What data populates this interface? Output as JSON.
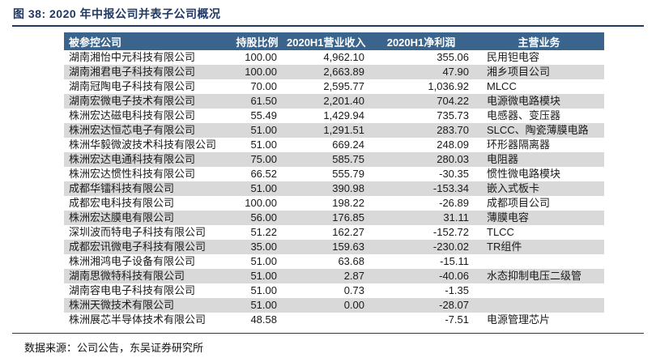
{
  "figure": {
    "title": "图 38:  2020 年中报公司并表子公司概况"
  },
  "table": {
    "columns": [
      "被参控公司",
      "持股比例",
      "2020H1营业收入",
      "2020H1净利润",
      "主营业务"
    ],
    "rows": [
      {
        "company": "湖南湘怡中元科技有限公司",
        "ratio": "100.00",
        "revenue": "4,962.10",
        "profit": "355.06",
        "business": "民用钽电容"
      },
      {
        "company": "湖南湘君电子科技有限公司",
        "ratio": "100.00",
        "revenue": "2,663.89",
        "profit": "47.90",
        "business": "湘乡项目公司"
      },
      {
        "company": "湖南冠陶电子科技有限公司",
        "ratio": "70.00",
        "revenue": "2,595.77",
        "profit": "1,036.92",
        "business": "MLCC"
      },
      {
        "company": "湖南宏微电子技术有限公司",
        "ratio": "61.50",
        "revenue": "2,201.40",
        "profit": "704.22",
        "business": "电源微电路模块"
      },
      {
        "company": "株洲宏达磁电科技有限公司",
        "ratio": "55.49",
        "revenue": "1,429.94",
        "profit": "735.73",
        "business": "电感器、变压器"
      },
      {
        "company": "株洲宏达恒芯电子有限公司",
        "ratio": "51.00",
        "revenue": "1,291.51",
        "profit": "283.70",
        "business": "SLCC、陶瓷薄膜电路"
      },
      {
        "company": "株洲华毅微波技术科技有限公司",
        "ratio": "51.00",
        "revenue": "669.24",
        "profit": "248.09",
        "business": "环形器隔离器"
      },
      {
        "company": "株洲宏达电通科技有限公司",
        "ratio": "75.00",
        "revenue": "585.75",
        "profit": "280.03",
        "business": "电阻器"
      },
      {
        "company": "株洲宏达惯性科技有限公司",
        "ratio": "66.52",
        "revenue": "555.79",
        "profit": "-30.35",
        "business": "惯性微电路模块"
      },
      {
        "company": "成都华镭科技有限公司",
        "ratio": "51.00",
        "revenue": "390.98",
        "profit": "-153.34",
        "business": "嵌入式板卡"
      },
      {
        "company": "成都宏电科技有限公司",
        "ratio": "100.00",
        "revenue": "198.22",
        "profit": "-26.89",
        "business": "成都项目公司"
      },
      {
        "company": "株洲宏达膜电有限公司",
        "ratio": "56.00",
        "revenue": "176.85",
        "profit": "31.11",
        "business": "薄膜电容"
      },
      {
        "company": "深圳波而特电子科技有限公司",
        "ratio": "51.22",
        "revenue": "162.27",
        "profit": "-152.72",
        "business": "TLCC"
      },
      {
        "company": "成都宏讯微电子科技有限公司",
        "ratio": "35.00",
        "revenue": "159.63",
        "profit": "-230.02",
        "business": "TR组件"
      },
      {
        "company": "株洲湘鸿电子设备有限公司",
        "ratio": "51.00",
        "revenue": "63.68",
        "profit": "-15.11",
        "business": ""
      },
      {
        "company": "湖南思微特科技有限公司",
        "ratio": "51.00",
        "revenue": "2.87",
        "profit": "-40.06",
        "business": "水态抑制电压二级管"
      },
      {
        "company": "湖南容电电子科技有限公司",
        "ratio": "51.00",
        "revenue": "0.73",
        "profit": "-1.35",
        "business": ""
      },
      {
        "company": "株洲天微技术有限公司",
        "ratio": "51.00",
        "revenue": "0.00",
        "profit": "-28.07",
        "business": ""
      },
      {
        "company": "株洲展芯半导体技术有限公司",
        "ratio": "48.58",
        "revenue": "",
        "profit": "-7.51",
        "business": "电源管理芯片"
      }
    ]
  },
  "footer": {
    "source": "数据来源：公司公告，东吴证券研究所"
  },
  "colors": {
    "title": "#1f3864",
    "header_bg": "#3a648c",
    "header_text": "#ffffff",
    "stripe": "#d9d9d9",
    "rule": "#1f3864"
  }
}
